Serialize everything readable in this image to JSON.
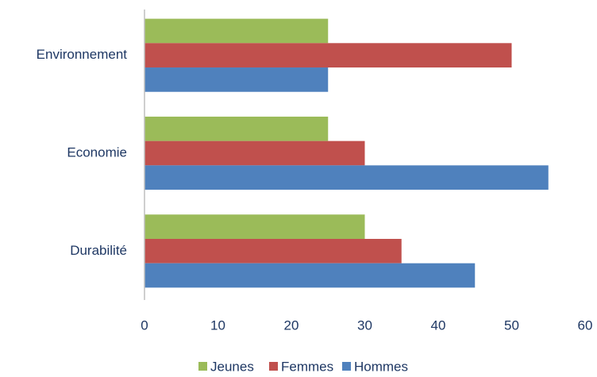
{
  "chart_data": {
    "type": "hbar",
    "categories": [
      "Environnement",
      "Economie",
      "Durabilité"
    ],
    "series": [
      {
        "name": "Jeunes",
        "color": "#9bbb59",
        "values": [
          25,
          25,
          30
        ]
      },
      {
        "name": "Femmes",
        "color": "#c0504d",
        "values": [
          50,
          30,
          35
        ]
      },
      {
        "name": "Hommes",
        "color": "#4f81bd",
        "values": [
          25,
          55,
          45
        ]
      }
    ],
    "xlim": [
      0,
      60
    ],
    "xticks": [
      0,
      10,
      20,
      30,
      40,
      50,
      60
    ],
    "grid": false,
    "legend": "bottom"
  }
}
